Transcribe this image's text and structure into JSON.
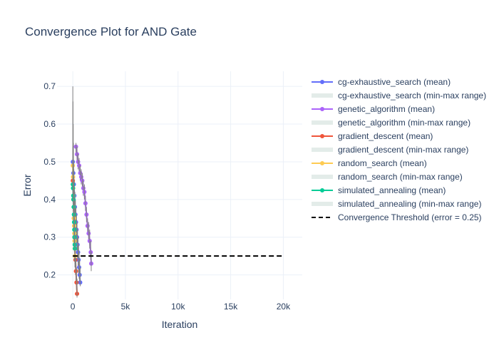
{
  "chart_data": {
    "type": "line",
    "title": "Convergence Plot for AND Gate",
    "xlabel": "Iteration",
    "ylabel": "Error",
    "xlim": [
      -1500,
      21800
    ],
    "ylim": [
      0.135,
      0.74
    ],
    "x_ticks": [
      0,
      5000,
      10000,
      15000,
      20000
    ],
    "x_tick_labels": [
      "0",
      "5k",
      "10k",
      "15k",
      "20k"
    ],
    "y_ticks": [
      0.2,
      0.3,
      0.4,
      0.5,
      0.6,
      0.7
    ],
    "y_tick_labels": [
      "0.2",
      "0.3",
      "0.4",
      "0.5",
      "0.6",
      "0.7"
    ],
    "grid": true,
    "legend_position": "right",
    "threshold": {
      "name": "Convergence Threshold (error = 0.25)",
      "value": 0.25,
      "x_range": [
        0,
        20000
      ],
      "color": "#000000"
    },
    "series": [
      {
        "name": "cg-exhaustive_search (mean)",
        "band_name": "cg-exhaustive_search (min-max range)",
        "color": "#636efa",
        "x": [
          0,
          50,
          100,
          150,
          200,
          250,
          300,
          350,
          400,
          450,
          500,
          550,
          600,
          650,
          700
        ],
        "y": [
          0.5,
          0.47,
          0.44,
          0.41,
          0.38,
          0.36,
          0.34,
          0.32,
          0.3,
          0.28,
          0.26,
          0.24,
          0.22,
          0.2,
          0.18
        ],
        "band_low": [
          0.46,
          0.43,
          0.4,
          0.37,
          0.34,
          0.32,
          0.3,
          0.28,
          0.26,
          0.24,
          0.22,
          0.2,
          0.19,
          0.18,
          0.17
        ],
        "band_high": [
          0.54,
          0.51,
          0.48,
          0.45,
          0.42,
          0.4,
          0.38,
          0.36,
          0.34,
          0.32,
          0.3,
          0.28,
          0.26,
          0.24,
          0.22
        ]
      },
      {
        "name": "genetic_algorithm (mean)",
        "band_name": "genetic_algorithm (min-max range)",
        "color": "#ab63fa",
        "x": [
          300,
          400,
          500,
          600,
          700,
          800,
          900,
          1000,
          1100,
          1200,
          1300,
          1400,
          1500,
          1600,
          1700,
          1750
        ],
        "y": [
          0.54,
          0.52,
          0.5,
          0.49,
          0.47,
          0.46,
          0.45,
          0.43,
          0.42,
          0.39,
          0.36,
          0.33,
          0.31,
          0.29,
          0.26,
          0.23
        ],
        "band_low": [
          0.52,
          0.5,
          0.48,
          0.47,
          0.45,
          0.44,
          0.43,
          0.41,
          0.4,
          0.37,
          0.34,
          0.31,
          0.29,
          0.27,
          0.24,
          0.21
        ],
        "band_high": [
          0.55,
          0.54,
          0.52,
          0.51,
          0.49,
          0.48,
          0.47,
          0.45,
          0.44,
          0.41,
          0.38,
          0.35,
          0.34,
          0.32,
          0.29,
          0.26
        ]
      },
      {
        "name": "gradient_descent (mean)",
        "band_name": "gradient_descent (min-max range)",
        "color": "#ef553b",
        "x": [
          0,
          50,
          100,
          150,
          200,
          250,
          300,
          350,
          400
        ],
        "y": [
          0.45,
          0.4,
          0.35,
          0.3,
          0.27,
          0.24,
          0.21,
          0.18,
          0.15
        ],
        "band_low": [
          0.4,
          0.35,
          0.3,
          0.26,
          0.23,
          0.2,
          0.18,
          0.16,
          0.14
        ],
        "band_high": [
          0.5,
          0.45,
          0.4,
          0.35,
          0.31,
          0.28,
          0.25,
          0.22,
          0.19
        ]
      },
      {
        "name": "random_search (mean)",
        "band_name": "random_search (min-max range)",
        "color": "#fecb52",
        "x": [
          0,
          20,
          40,
          60,
          80,
          100,
          120,
          140,
          160,
          180,
          200
        ],
        "y": [
          0.49,
          0.46,
          0.43,
          0.41,
          0.38,
          0.35,
          0.33,
          0.31,
          0.29,
          0.27,
          0.25
        ],
        "band_low": [
          0.45,
          0.42,
          0.4,
          0.38,
          0.35,
          0.32,
          0.3,
          0.28,
          0.26,
          0.24,
          0.22
        ],
        "band_high": [
          0.53,
          0.5,
          0.47,
          0.44,
          0.41,
          0.38,
          0.36,
          0.34,
          0.32,
          0.3,
          0.28
        ]
      },
      {
        "name": "simulated_annealing (mean)",
        "band_name": "simulated_annealing (min-max range)",
        "color": "#00cc96",
        "x": [
          0,
          20,
          40,
          60,
          80,
          100,
          120,
          140,
          160,
          180,
          200
        ],
        "y": [
          0.44,
          0.43,
          0.41,
          0.4,
          0.38,
          0.36,
          0.34,
          0.32,
          0.3,
          0.28,
          0.27
        ],
        "band_low": [
          0.4,
          0.39,
          0.37,
          0.36,
          0.34,
          0.32,
          0.3,
          0.28,
          0.26,
          0.24,
          0.23
        ],
        "band_high": [
          0.7,
          0.66,
          0.6,
          0.55,
          0.5,
          0.46,
          0.42,
          0.38,
          0.35,
          0.32,
          0.3
        ]
      }
    ]
  }
}
